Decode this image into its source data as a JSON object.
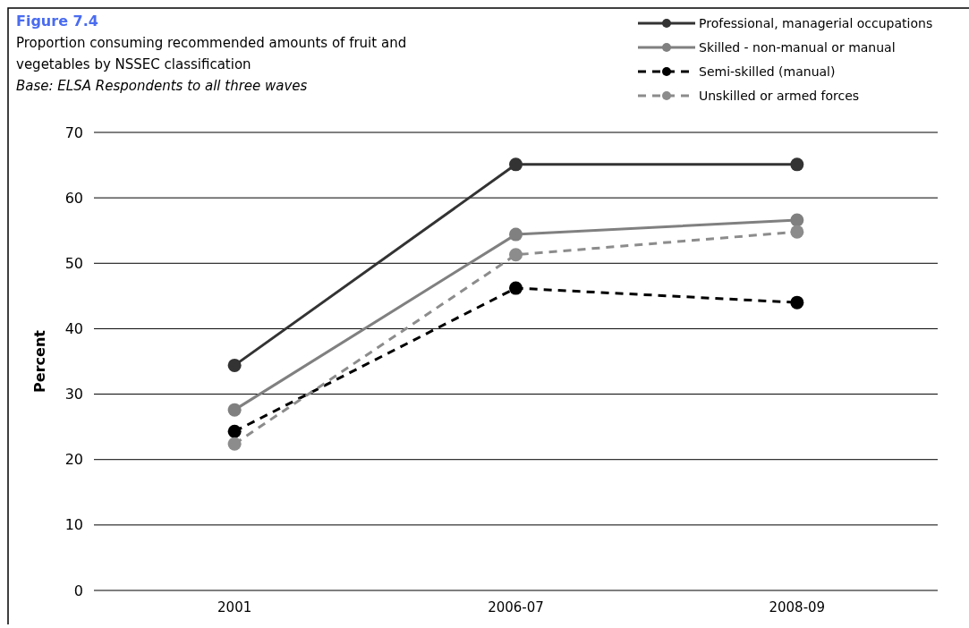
{
  "chart_data": {
    "type": "line",
    "title": "Figure 7.4",
    "subtitle": "Proportion consuming recommended amounts of fruit and vegetables by NSSEC classification",
    "annotations": [
      "Base: ELSA Respondents to all three waves"
    ],
    "ylabel": "Percent",
    "categories": [
      "2001",
      "2006-07",
      "2008-09"
    ],
    "series": [
      {
        "name": "Professional, managerial occupations",
        "color": "#333333",
        "values": [
          34.4,
          65.1,
          65.1
        ],
        "line_style": "solid"
      },
      {
        "name": "Skilled - non-manual or manual",
        "color": "#808080",
        "values": [
          27.6,
          54.4,
          56.6
        ],
        "line_style": "solid"
      },
      {
        "name": "Semi-skilled (manual)",
        "color": "#000000",
        "values": [
          24.3,
          46.2,
          44.0
        ],
        "line_style": "dashed"
      },
      {
        "name": "Unskilled or armed forces",
        "color": "#8c8c8c",
        "values": [
          22.4,
          51.3,
          54.8
        ],
        "line_style": "dashed"
      }
    ],
    "ylim": [
      0,
      70
    ],
    "yticks": [
      0,
      10,
      20,
      30,
      40,
      50,
      60,
      70
    ],
    "grid": "y",
    "legend": "top right",
    "marker": "circle"
  }
}
